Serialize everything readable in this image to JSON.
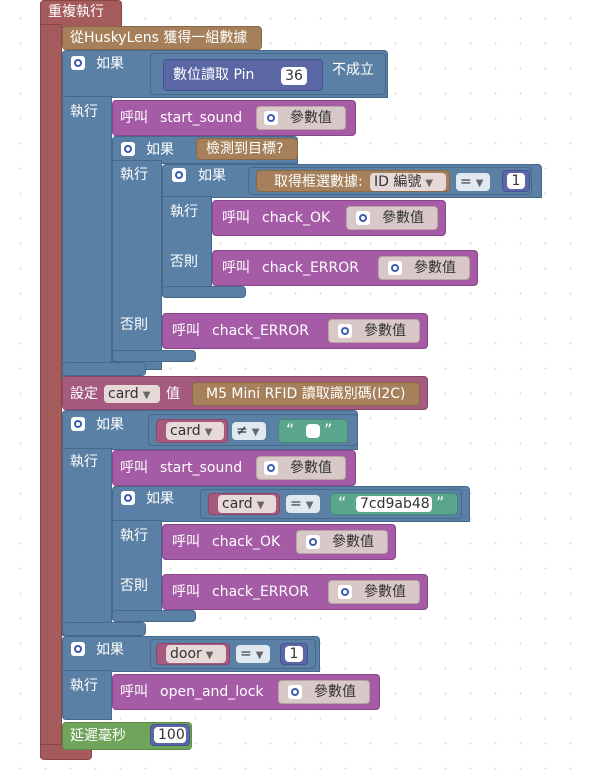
{
  "colors": {
    "loop": "#a55b5b",
    "husky": "#a5805b",
    "if": "#5b80a5",
    "procedure_call": "#a55ba5",
    "variable": "#a55b80",
    "text": "#5ba58c",
    "number": "#5b67a5",
    "delay": "#6fa55b"
  },
  "loop": {
    "label": "重複執行"
  },
  "husky": {
    "label": "從HuskyLens 獲得一組數據"
  },
  "labels": {
    "if": "如果",
    "do": "執行",
    "else": "否則",
    "call": "呼叫",
    "params": "參數值",
    "set": "設定",
    "value": "值"
  },
  "if1": {
    "digital_read": "數位讀取 Pin",
    "pin": "36",
    "negate": "不成立",
    "call_name": "start_sound"
  },
  "if2": {
    "condition": "檢測到目標?",
    "inner_if": {
      "block_data": "取得框選數據:",
      "field": "ID 編號",
      "operator": "=",
      "value": "1",
      "then_call": "chack_OK",
      "else_call": "chack_ERROR"
    },
    "else_call": "chack_ERROR"
  },
  "set_card": {
    "variable": "card",
    "source": "M5 Mini RFID 讀取識別碼(I2C)"
  },
  "if3": {
    "variable": "card",
    "operator": "≠",
    "text_open": "“",
    "text_close": "”",
    "call_name": "start_sound",
    "inner_if": {
      "variable": "card",
      "operator": "=",
      "text_value": "7cd9ab48",
      "then_call": "chack_OK",
      "else_call": "chack_ERROR"
    }
  },
  "if4": {
    "variable": "door",
    "operator": "=",
    "value": "1",
    "call_name": "open_and_lock"
  },
  "delay": {
    "label": "延遲毫秒",
    "value": "100"
  }
}
